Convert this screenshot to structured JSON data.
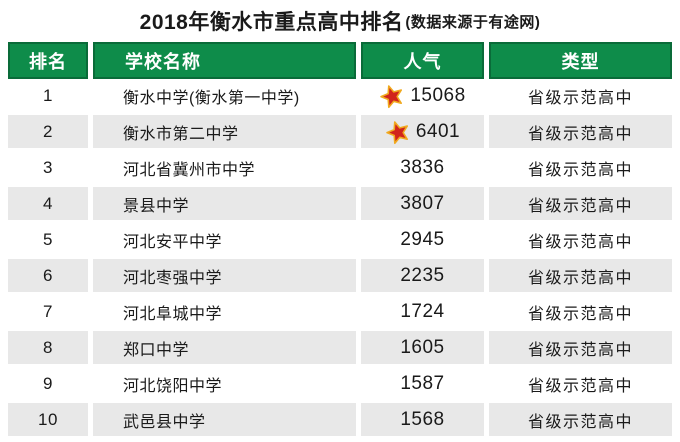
{
  "title": {
    "main": "2018年衡水市重点高中排名",
    "suffix": "(数据来源于有途网)"
  },
  "colors": {
    "header_green": "#0e8c4a",
    "header_border_green": "#0a6b39",
    "stripe_gray": "#e8e8e8",
    "text_black": "#1a1a1a",
    "star_red": "#d1251c",
    "star_gold": "#f0a91e"
  },
  "icons": {
    "star": "star-icon"
  },
  "chart_data": {
    "type": "table",
    "title": "2018年衡水市重点高中排名",
    "subtitle": "(数据来源于有途网)",
    "columns": [
      "排名",
      "学校名称",
      "人气",
      "类型"
    ],
    "rows": [
      {
        "rank": "1",
        "school": "衡水中学(衡水第一中学)",
        "popularity": 15068,
        "starred": true,
        "type": "省级示范高中"
      },
      {
        "rank": "2",
        "school": "衡水市第二中学",
        "popularity": 6401,
        "starred": true,
        "type": "省级示范高中"
      },
      {
        "rank": "3",
        "school": "河北省冀州市中学",
        "popularity": 3836,
        "starred": false,
        "type": "省级示范高中"
      },
      {
        "rank": "4",
        "school": "景县中学",
        "popularity": 3807,
        "starred": false,
        "type": "省级示范高中"
      },
      {
        "rank": "5",
        "school": "河北安平中学",
        "popularity": 2945,
        "starred": false,
        "type": "省级示范高中"
      },
      {
        "rank": "6",
        "school": "河北枣强中学",
        "popularity": 2235,
        "starred": false,
        "type": "省级示范高中"
      },
      {
        "rank": "7",
        "school": "河北阜城中学",
        "popularity": 1724,
        "starred": false,
        "type": "省级示范高中"
      },
      {
        "rank": "8",
        "school": "郑口中学",
        "popularity": 1605,
        "starred": false,
        "type": "省级示范高中"
      },
      {
        "rank": "9",
        "school": "河北饶阳中学",
        "popularity": 1587,
        "starred": false,
        "type": "省级示范高中"
      },
      {
        "rank": "10",
        "school": "武邑县中学",
        "popularity": 1568,
        "starred": false,
        "type": "省级示范高中"
      }
    ]
  }
}
